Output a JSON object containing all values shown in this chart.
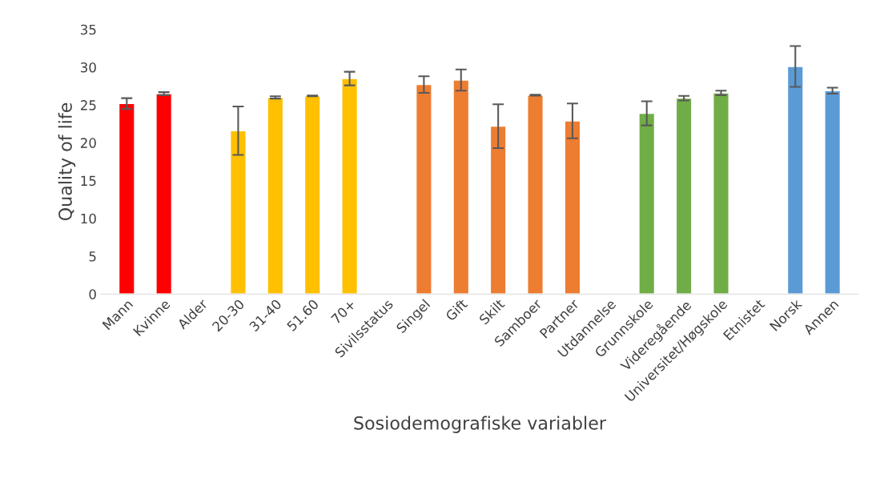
{
  "chart_data": {
    "type": "bar",
    "xlabel": "Sosiodemografiske variabler",
    "ylabel": "Quality of life",
    "categories": [
      "Mann",
      "Kvinne",
      "Alder",
      "20-30",
      "31-40",
      "51.60",
      "70+",
      "Sivilsstatus",
      "Singel",
      "Gift",
      "Skilt",
      "Samboer",
      "Partner",
      "Utdannelse",
      "Grunnskole",
      "Videregående",
      "Universitet/Høgskole",
      "Etnistet",
      "Norsk",
      "Annen"
    ],
    "values": [
      25.2,
      26.5,
      null,
      21.6,
      26.0,
      26.2,
      28.5,
      null,
      27.7,
      28.3,
      22.2,
      26.3,
      22.9,
      null,
      23.9,
      25.9,
      26.6,
      null,
      30.1,
      26.9
    ],
    "errors": [
      0.7,
      0.2,
      null,
      3.2,
      0.15,
      0.05,
      0.9,
      null,
      1.1,
      1.4,
      2.9,
      0.05,
      2.3,
      null,
      1.6,
      0.3,
      0.3,
      null,
      2.7,
      0.4
    ],
    "colors": [
      "#ff0000",
      "#ff0000",
      "#ffffff",
      "#ffc000",
      "#ffc000",
      "#ffc000",
      "#ffc000",
      "#ffffff",
      "#ed7d31",
      "#ed7d31",
      "#ed7d31",
      "#ed7d31",
      "#ed7d31",
      "#ffffff",
      "#70ad47",
      "#70ad47",
      "#70ad47",
      "#ffffff",
      "#5b9bd5",
      "#5b9bd5"
    ],
    "ylim": [
      0,
      35
    ],
    "yticks": [
      0,
      5,
      10,
      15,
      20,
      25,
      30,
      35
    ],
    "grid": false,
    "legend": false
  }
}
